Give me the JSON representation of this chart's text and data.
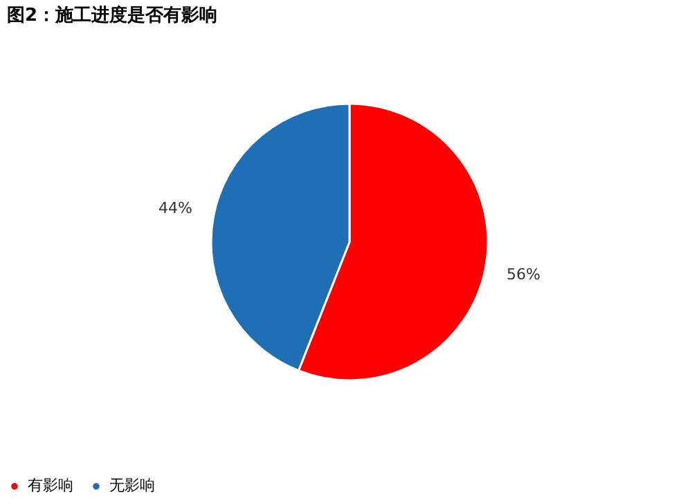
{
  "chart_data": {
    "type": "pie",
    "title": "图2：施工进度是否有影响",
    "categories": [
      "有影响",
      "无影响"
    ],
    "values": [
      56,
      44
    ],
    "colors": [
      "#ff0000",
      "#1f6fb4"
    ],
    "value_labels": [
      "56%",
      "44%"
    ],
    "legend": "bottom"
  }
}
